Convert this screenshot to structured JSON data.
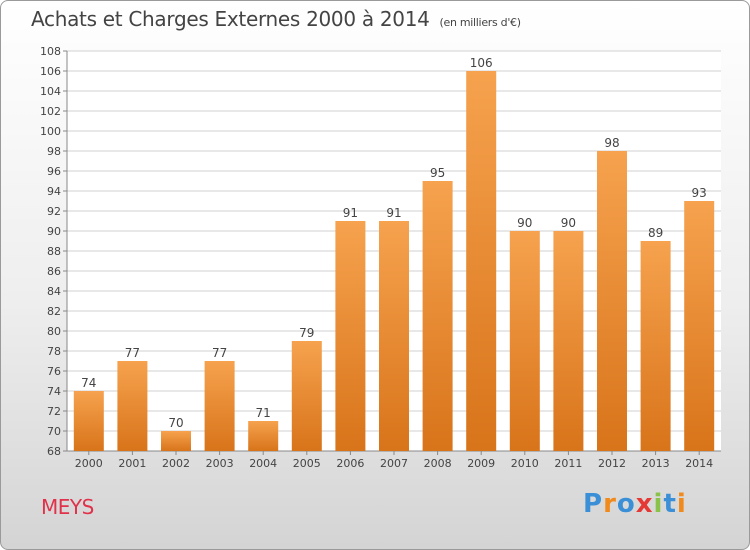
{
  "header": {
    "title": "Achats et Charges Externes 2000 à 2014",
    "unit": "(en milliers d'€)"
  },
  "footer": {
    "commune": "MEYS",
    "brand": "Proxiti",
    "brand_letters": [
      {
        "ch": "P",
        "color": "#3a8fd6"
      },
      {
        "ch": "r",
        "color": "#f08a1c"
      },
      {
        "ch": "o",
        "color": "#3a8fd6"
      },
      {
        "ch": "x",
        "color": "#e53935"
      },
      {
        "ch": "i",
        "color": "#8bc34a"
      },
      {
        "ch": "t",
        "color": "#3a8fd6"
      },
      {
        "ch": "i",
        "color": "#f08a1c"
      }
    ]
  },
  "colors": {
    "bar_top": "#f6a24e",
    "bar_bottom": "#d8741a",
    "label": "#444444",
    "grid": "#d0d0d0"
  },
  "chart_data": {
    "type": "bar",
    "categories": [
      "2000",
      "2001",
      "2002",
      "2003",
      "2004",
      "2005",
      "2006",
      "2007",
      "2008",
      "2009",
      "2010",
      "2011",
      "2012",
      "2013",
      "2014"
    ],
    "values": [
      74,
      77,
      70,
      77,
      71,
      79,
      91,
      91,
      95,
      106,
      90,
      90,
      98,
      89,
      93
    ],
    "ylim": [
      68,
      108
    ],
    "ytick_step": 2,
    "grid": true,
    "data_labels": true
  }
}
